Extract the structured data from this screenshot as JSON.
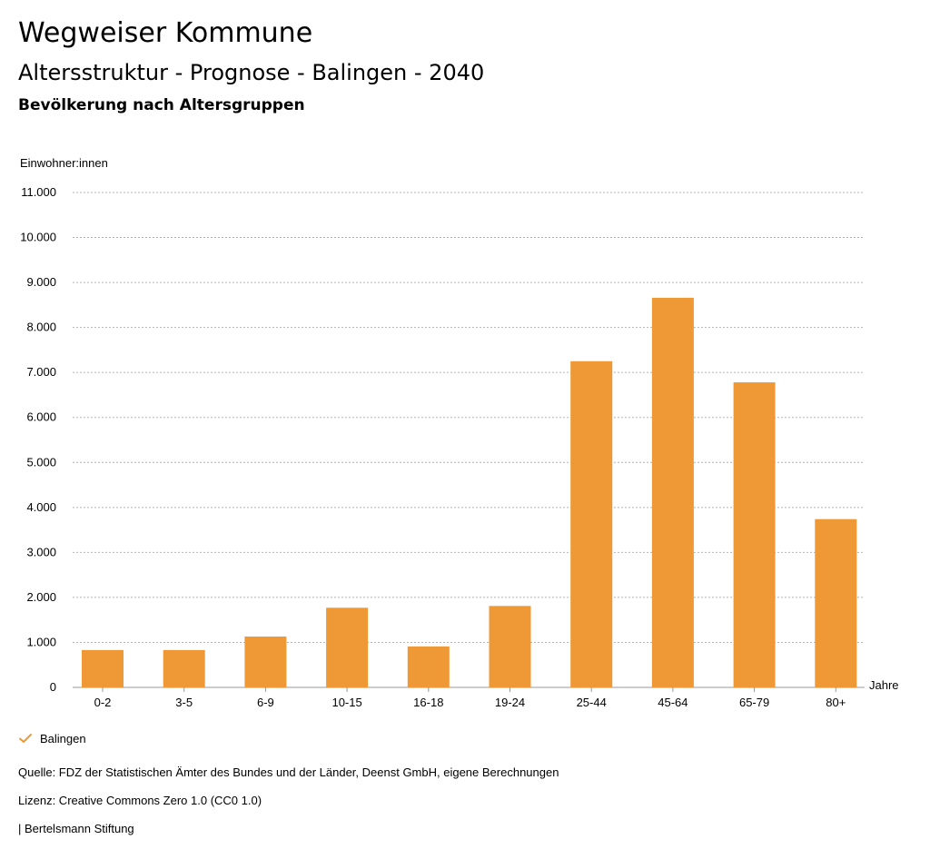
{
  "header": {
    "title": "Wegweiser Kommune",
    "subtitle": "Altersstruktur - Prognose - Balingen - 2040",
    "subsubtitle": "Bevölkerung nach Altersgruppen"
  },
  "chart_data": {
    "type": "bar",
    "ylabel": "Einwohner:innen",
    "xlabel": "Jahre",
    "categories": [
      "0-2",
      "3-5",
      "6-9",
      "10-15",
      "16-18",
      "19-24",
      "25-44",
      "45-64",
      "65-79",
      "80+"
    ],
    "series": [
      {
        "name": "Balingen",
        "color": "#ee9936",
        "values": [
          830,
          830,
          1130,
          1770,
          910,
          1810,
          7250,
          8660,
          6780,
          3740
        ]
      }
    ],
    "ylim": [
      0,
      11000
    ],
    "yticks": [
      0,
      1000,
      2000,
      3000,
      4000,
      5000,
      6000,
      7000,
      8000,
      9000,
      10000,
      11000
    ],
    "ytick_labels": [
      "0",
      "1.000",
      "2.000",
      "3.000",
      "4.000",
      "5.000",
      "6.000",
      "7.000",
      "8.000",
      "9.000",
      "10.000",
      "11.000"
    ],
    "grid": true,
    "legend_position": "bottom-left"
  },
  "legend": {
    "label": "Balingen",
    "icon": "check-icon"
  },
  "footer": {
    "source": "Quelle: FDZ der Statistischen Ämter des Bundes und der Länder, Deenst GmbH, eigene Berechnungen",
    "license": "Lizenz: Creative Commons Zero 1.0 (CC0 1.0)",
    "publisher": "| Bertelsmann Stiftung"
  }
}
